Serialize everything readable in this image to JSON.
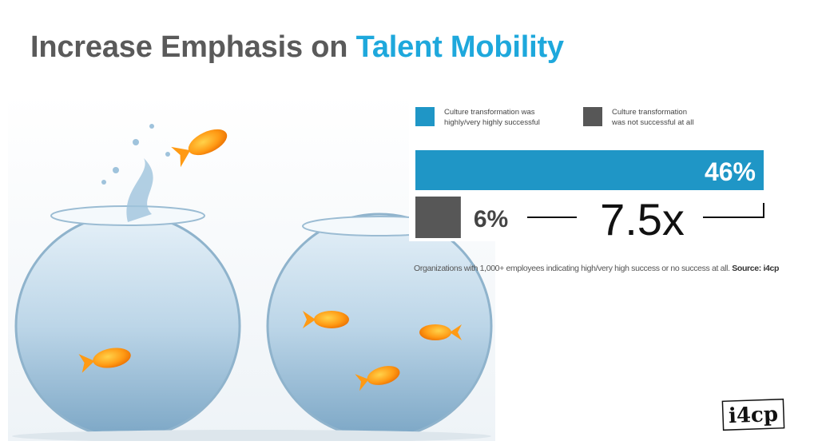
{
  "title": {
    "prefix": "Increase Emphasis on",
    "highlight": "Talent Mobility"
  },
  "colors": {
    "accent": "#1ea8dc",
    "bar_success": "#1f96c6",
    "bar_fail": "#575757",
    "title_dark": "#5a5a5a"
  },
  "chart_data": {
    "type": "bar",
    "orientation": "horizontal",
    "series": [
      {
        "name": "Culture transformation was highly/very highly successful",
        "value": 46,
        "label": "46%",
        "color": "#1f96c6"
      },
      {
        "name": "Culture transformation was not successful at all",
        "value": 6,
        "label": "6%",
        "color": "#575757"
      }
    ],
    "ratio_label": "7.5x",
    "legend": [
      {
        "line1": "Culture transformation was",
        "line2": "highly/very highly successful",
        "color": "#1f96c6"
      },
      {
        "line1": "Culture transformation",
        "line2": "was not successful at all",
        "color": "#575757"
      }
    ],
    "legend_position": "top",
    "xlim": [
      0,
      46
    ]
  },
  "footnote": {
    "text": "Organizations with 1,000+ employees indicating high/very high success or no success at all.",
    "source": "Source: i4cp"
  },
  "logo": {
    "text": "i4cp"
  }
}
